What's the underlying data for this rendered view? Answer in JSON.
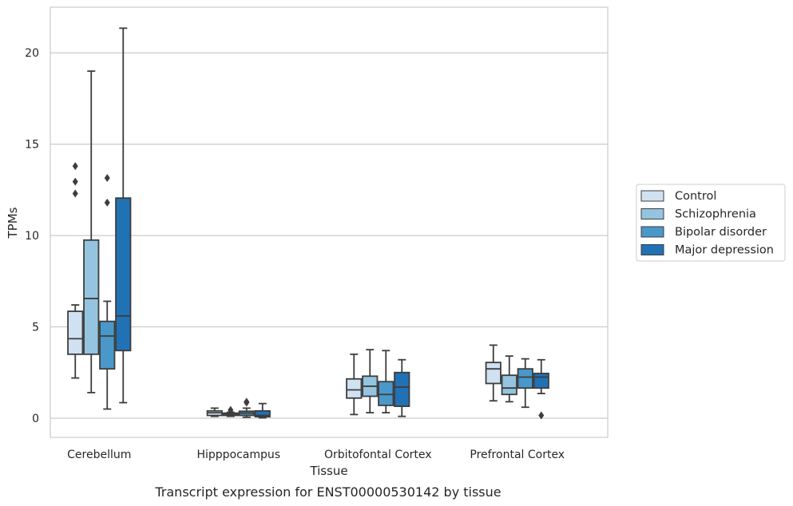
{
  "caption": "Transcript expression for ENST00000530142 by tissue",
  "chart_data": {
    "type": "box",
    "xlabel": "Tissue",
    "ylabel": "TPMs",
    "ylim": [
      -1.05,
      22.5
    ],
    "yticks": [
      0,
      5,
      10,
      15,
      20
    ],
    "grid": "horizontal",
    "legend_position": "right",
    "categories": [
      "Cerebellum",
      "Hipppocampus",
      "Orbitofontal Cortex",
      "Prefrontal Cortex"
    ],
    "series": [
      {
        "name": "Control",
        "color": "#d0e1f2",
        "boxes": [
          {
            "whisker_low": 2.2,
            "q1": 3.5,
            "median": 4.35,
            "q3": 5.85,
            "whisker_high": 6.2,
            "outliers": [
              12.3,
              12.95,
              13.8
            ]
          },
          {
            "whisker_low": 0.1,
            "q1": 0.15,
            "median": 0.3,
            "q3": 0.4,
            "whisker_high": 0.55,
            "outliers": []
          },
          {
            "whisker_low": 0.2,
            "q1": 1.1,
            "median": 1.55,
            "q3": 2.15,
            "whisker_high": 3.5,
            "outliers": []
          },
          {
            "whisker_low": 0.95,
            "q1": 1.9,
            "median": 2.7,
            "q3": 3.05,
            "whisker_high": 4.0,
            "outliers": []
          }
        ]
      },
      {
        "name": "Schizophrenia",
        "color": "#94c4df",
        "boxes": [
          {
            "whisker_low": 1.4,
            "q1": 3.5,
            "median": 6.55,
            "q3": 9.75,
            "whisker_high": 19.0,
            "outliers": []
          },
          {
            "whisker_low": 0.1,
            "q1": 0.15,
            "median": 0.22,
            "q3": 0.28,
            "whisker_high": 0.32,
            "outliers": [
              0.35,
              0.45
            ]
          },
          {
            "whisker_low": 0.3,
            "q1": 1.2,
            "median": 1.75,
            "q3": 2.3,
            "whisker_high": 3.75,
            "outliers": []
          },
          {
            "whisker_low": 0.9,
            "q1": 1.3,
            "median": 1.65,
            "q3": 2.35,
            "whisker_high": 3.4,
            "outliers": []
          }
        ]
      },
      {
        "name": "Bipolar disorder",
        "color": "#4a98c9",
        "boxes": [
          {
            "whisker_low": 0.5,
            "q1": 2.7,
            "median": 4.5,
            "q3": 5.3,
            "whisker_high": 6.4,
            "outliers": [
              11.8,
              13.15
            ]
          },
          {
            "whisker_low": 0.05,
            "q1": 0.15,
            "median": 0.28,
            "q3": 0.38,
            "whisker_high": 0.55,
            "outliers": [
              0.85,
              0.9
            ]
          },
          {
            "whisker_low": 0.3,
            "q1": 0.7,
            "median": 1.3,
            "q3": 2.0,
            "whisker_high": 3.7,
            "outliers": []
          },
          {
            "whisker_low": 0.6,
            "q1": 1.65,
            "median": 2.25,
            "q3": 2.7,
            "whisker_high": 3.25,
            "outliers": []
          }
        ]
      },
      {
        "name": "Major depression",
        "color": "#2171b5",
        "boxes": [
          {
            "whisker_low": 0.85,
            "q1": 3.7,
            "median": 5.6,
            "q3": 12.05,
            "whisker_high": 21.35,
            "outliers": []
          },
          {
            "whisker_low": 0.02,
            "q1": 0.08,
            "median": 0.15,
            "q3": 0.4,
            "whisker_high": 0.8,
            "outliers": []
          },
          {
            "whisker_low": 0.1,
            "q1": 0.65,
            "median": 1.7,
            "q3": 2.5,
            "whisker_high": 3.2,
            "outliers": []
          },
          {
            "whisker_low": 1.35,
            "q1": 1.65,
            "median": 2.25,
            "q3": 2.45,
            "whisker_high": 3.2,
            "outliers": [
              0.15
            ]
          }
        ]
      }
    ]
  }
}
